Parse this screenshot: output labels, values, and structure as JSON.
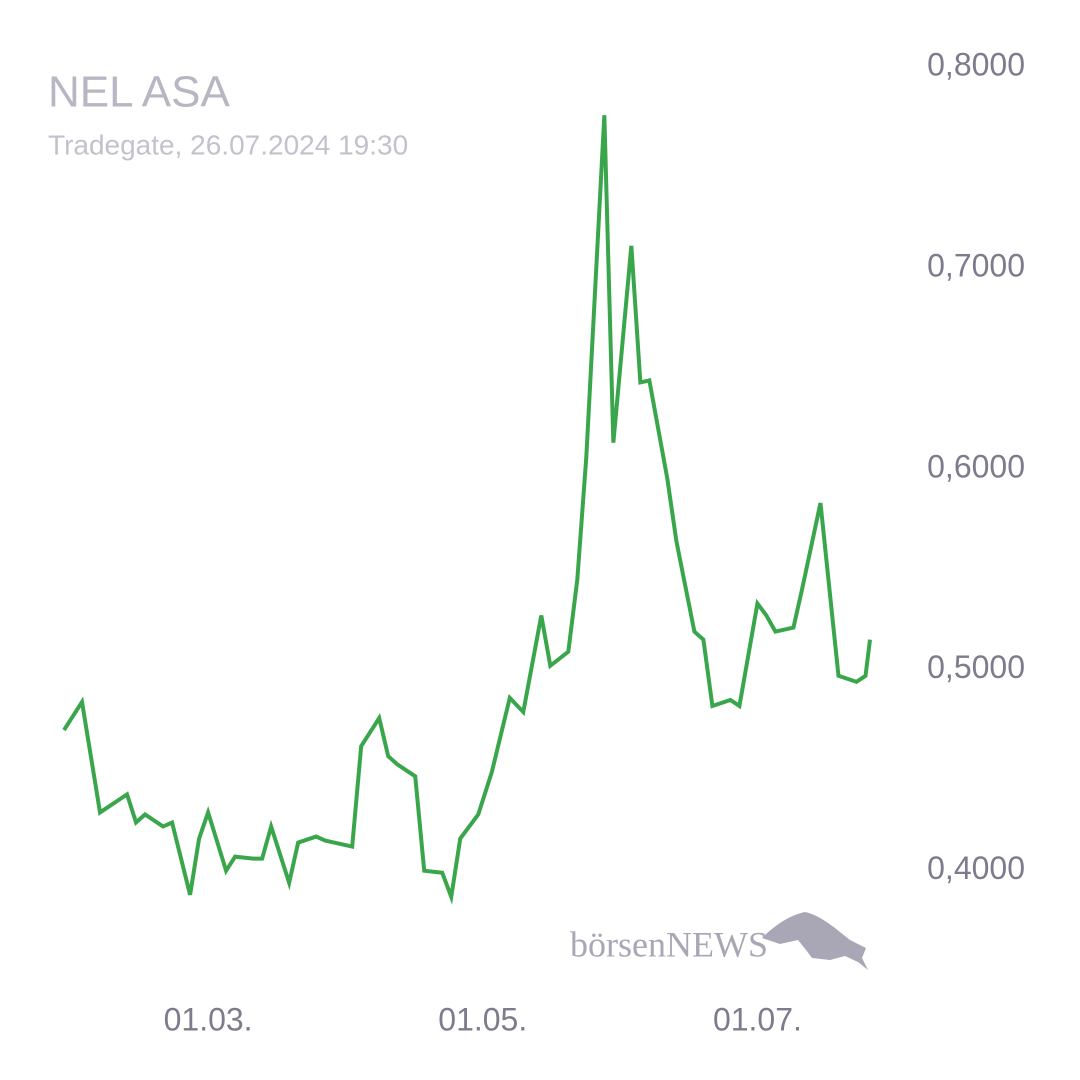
{
  "chart_data": {
    "type": "line",
    "title": "NEL ASA",
    "subtitle": "Tradegate, 26.07.2024 19:30",
    "watermark": "börsenNEWS",
    "x": [
      "2024-01-29",
      "2024-02-02",
      "2024-02-06",
      "2024-02-12",
      "2024-02-14",
      "2024-02-16",
      "2024-02-20",
      "2024-02-22",
      "2024-02-26",
      "2024-02-28",
      "2024-03-01",
      "2024-03-05",
      "2024-03-07",
      "2024-03-11",
      "2024-03-13",
      "2024-03-15",
      "2024-03-19",
      "2024-03-21",
      "2024-03-25",
      "2024-03-27",
      "2024-04-02",
      "2024-04-04",
      "2024-04-08",
      "2024-04-10",
      "2024-04-12",
      "2024-04-16",
      "2024-04-18",
      "2024-04-22",
      "2024-04-24",
      "2024-04-26",
      "2024-04-30",
      "2024-05-03",
      "2024-05-07",
      "2024-05-10",
      "2024-05-14",
      "2024-05-16",
      "2024-05-20",
      "2024-05-22",
      "2024-05-24",
      "2024-05-28",
      "2024-05-30",
      "2024-06-03",
      "2024-06-05",
      "2024-06-07",
      "2024-06-11",
      "2024-06-13",
      "2024-06-17",
      "2024-06-19",
      "2024-06-21",
      "2024-06-25",
      "2024-06-27",
      "2024-07-01",
      "2024-07-03",
      "2024-07-05",
      "2024-07-09",
      "2024-07-11",
      "2024-07-15",
      "2024-07-19",
      "2024-07-23",
      "2024-07-25",
      "2024-07-26"
    ],
    "series": [
      {
        "name": "NEL ASA",
        "color": "#3aa64c",
        "values": [
          0.47,
          0.484,
          0.429,
          0.438,
          0.424,
          0.428,
          0.422,
          0.424,
          0.388,
          0.416,
          0.429,
          0.4,
          0.407,
          0.406,
          0.406,
          0.422,
          0.394,
          0.414,
          0.417,
          0.415,
          0.412,
          0.462,
          0.476,
          0.457,
          0.453,
          0.447,
          0.4,
          0.399,
          0.387,
          0.416,
          0.428,
          0.449,
          0.486,
          0.479,
          0.527,
          0.502,
          0.509,
          0.545,
          0.606,
          0.776,
          0.613,
          0.711,
          0.643,
          0.644,
          0.595,
          0.564,
          0.519,
          0.515,
          0.482,
          0.485,
          0.482,
          0.533,
          0.527,
          0.519,
          0.521,
          0.541,
          0.583,
          0.497,
          0.494,
          0.497,
          0.515
        ]
      }
    ],
    "xlim": [
      "2024-01-29",
      "2024-07-26"
    ],
    "xticks": [
      {
        "value": "2024-03-01",
        "label": "01.03."
      },
      {
        "value": "2024-05-01",
        "label": "01.05."
      },
      {
        "value": "2024-07-01",
        "label": "01.07."
      }
    ],
    "ylim": [
      0.37,
      0.8
    ],
    "yticks": [
      {
        "value": 0.4,
        "label": "0,4000"
      },
      {
        "value": 0.5,
        "label": "0,5000"
      },
      {
        "value": 0.6,
        "label": "0,6000"
      },
      {
        "value": 0.7,
        "label": "0,7000"
      },
      {
        "value": 0.8,
        "label": "0,8000"
      }
    ],
    "grid": false
  }
}
